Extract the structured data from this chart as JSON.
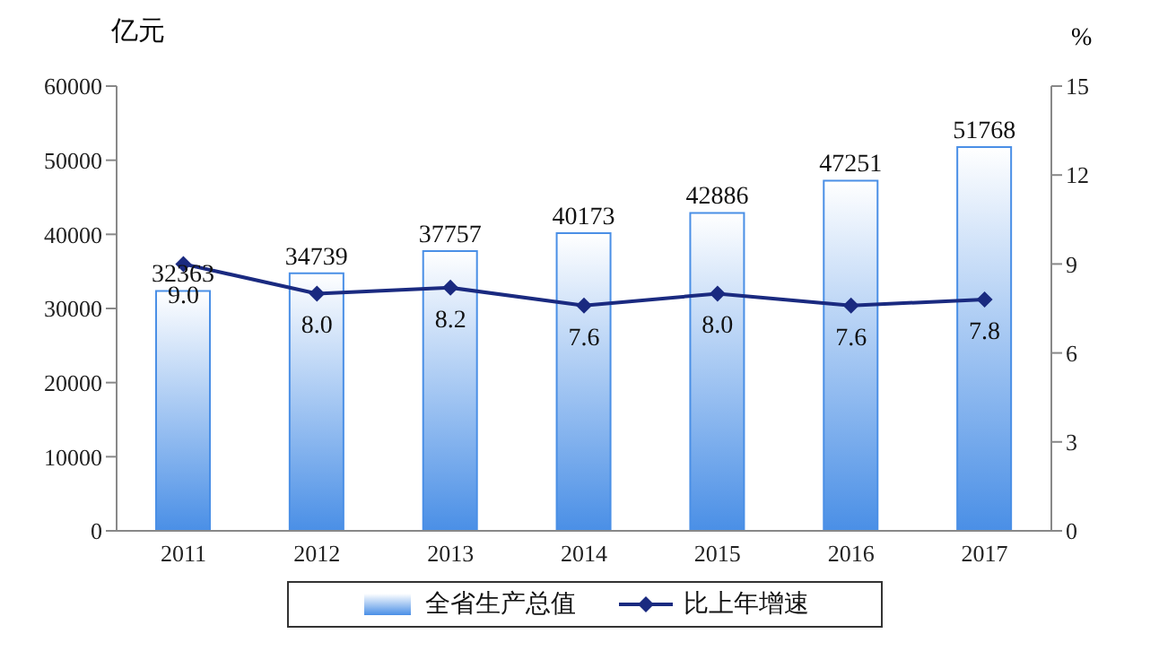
{
  "chart_data": {
    "type": "bar",
    "ylabel": "亿元",
    "y2label": "%",
    "categories": [
      "2011",
      "2012",
      "2013",
      "2014",
      "2015",
      "2016",
      "2017"
    ],
    "series": [
      {
        "name": "全省生产总值",
        "color": "#4a8fe6",
        "values": [
          32363,
          34739,
          37757,
          40173,
          42886,
          47251,
          51768
        ]
      },
      {
        "name": "比上年增速",
        "type": "line",
        "axis": "y2",
        "color": "#1a2a80",
        "values": [
          9.0,
          8.0,
          8.2,
          7.6,
          8.0,
          7.6,
          7.8
        ],
        "value_labels": [
          "9.0",
          "8.0",
          "8.2",
          "7.6",
          "8.0",
          "7.6",
          "7.8"
        ]
      }
    ],
    "ylim": [
      0,
      60000
    ],
    "yticks": [
      0,
      10000,
      20000,
      30000,
      40000,
      50000,
      60000
    ],
    "y2lim": [
      0,
      15
    ],
    "y2ticks": [
      0,
      3,
      6,
      9,
      12,
      15
    ],
    "data_labels": true,
    "marker": "diamond",
    "legend": "bottom"
  }
}
